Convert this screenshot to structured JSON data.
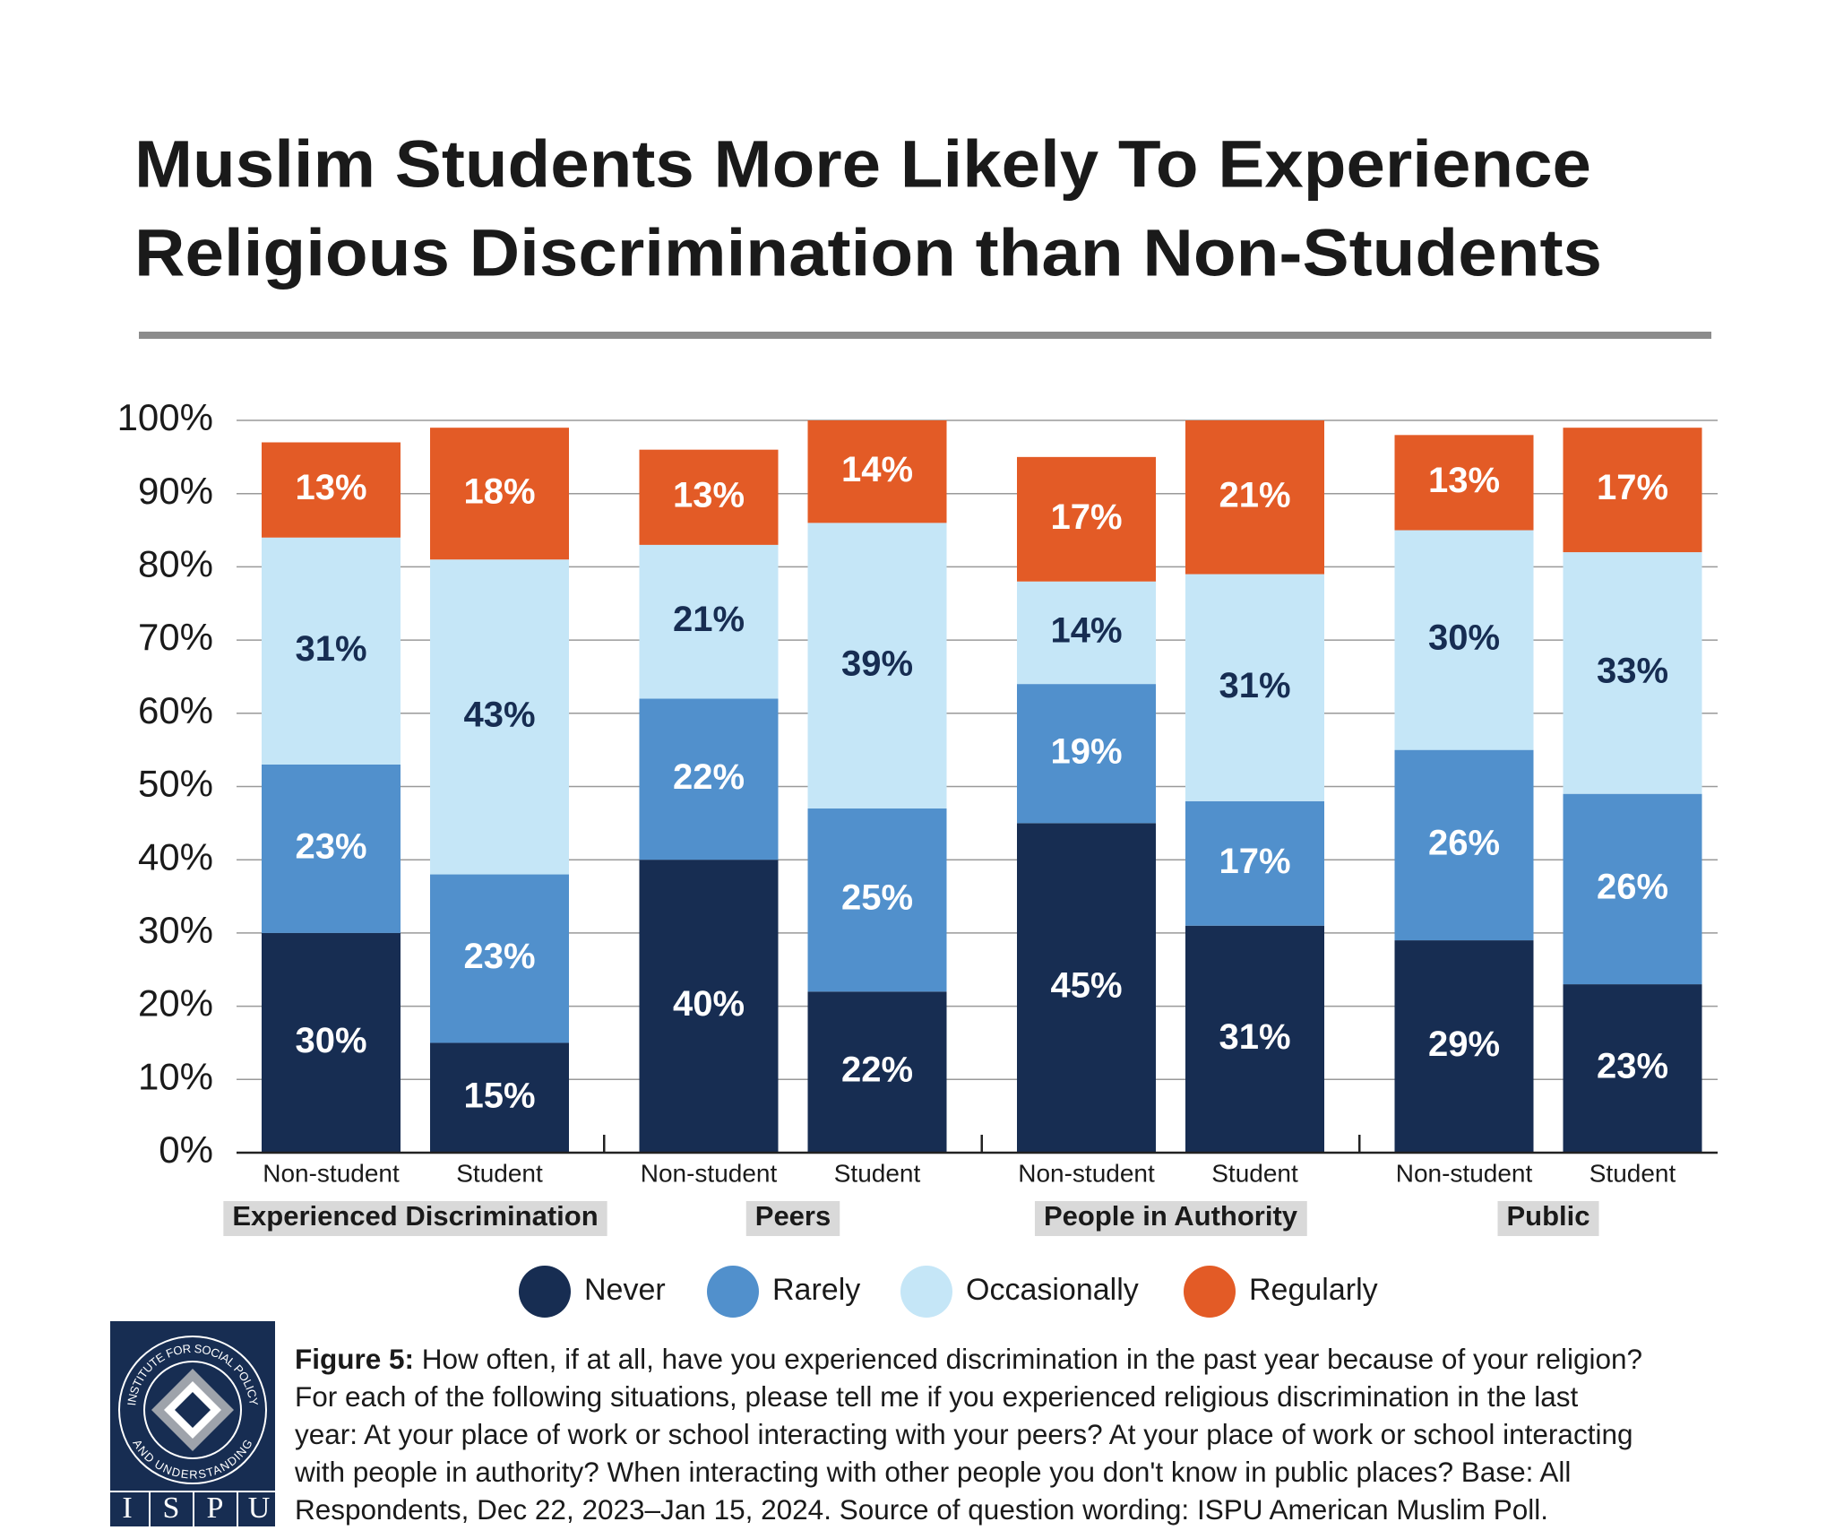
{
  "chart_data": {
    "type": "stacked_bar",
    "title_lines": [
      "Muslim Students More Likely To Experience",
      "Religious Discrimination than Non-Students"
    ],
    "categories": [
      "Non-student",
      "Student",
      "Non-student",
      "Student",
      "Non-student",
      "Student",
      "Non-student",
      "Student"
    ],
    "groups": [
      "Experienced Discrimination",
      "Peers",
      "People in Authority",
      "Public"
    ],
    "series": [
      {
        "name": "Never",
        "color": "#172d52",
        "values": [
          30,
          15,
          40,
          22,
          45,
          31,
          29,
          23
        ],
        "value_labels": [
          "30%",
          "15%",
          "40%",
          "22%",
          "45%",
          "31%",
          "29%",
          "23%"
        ]
      },
      {
        "name": "Rarely",
        "color": "#5190cc",
        "values": [
          23,
          23,
          22,
          25,
          19,
          17,
          26,
          26
        ],
        "value_labels": [
          "23%",
          "23%",
          "22%",
          "25%",
          "19%",
          "17%",
          "26%",
          "26%"
        ]
      },
      {
        "name": "Occasionally",
        "color": "#c5e6f7",
        "values": [
          31,
          43,
          21,
          39,
          14,
          31,
          30,
          33
        ],
        "value_labels": [
          "31%",
          "43%",
          "21%",
          "39%",
          "14%",
          "31%",
          "30%",
          "33%"
        ]
      },
      {
        "name": "Regularly",
        "color": "#e35b26",
        "values": [
          13,
          18,
          13,
          14,
          17,
          21,
          13,
          17
        ],
        "value_labels": [
          "13%",
          "18%",
          "13%",
          "14%",
          "17%",
          "21%",
          "13%",
          "17%"
        ]
      }
    ],
    "ylim": [
      0,
      100
    ],
    "yticks": [
      {
        "value": 0,
        "label": "0%"
      },
      {
        "value": 10,
        "label": "10%"
      },
      {
        "value": 20,
        "label": "20%"
      },
      {
        "value": 30,
        "label": "30%"
      },
      {
        "value": 40,
        "label": "40%"
      },
      {
        "value": 50,
        "label": "50%"
      },
      {
        "value": 60,
        "label": "60%"
      },
      {
        "value": 70,
        "label": "70%"
      },
      {
        "value": 80,
        "label": "80%"
      },
      {
        "value": 90,
        "label": "90%"
      },
      {
        "value": 100,
        "label": "100%"
      }
    ],
    "grid": true
  },
  "caption": {
    "figure_label": "Figure 5:",
    "lines": [
      "How often, if at all, have you experienced discrimination in the past year because of your religion?",
      "For each of the following situations, please tell me if you experienced religious discrimination in the last",
      "year: At your place of work or school interacting with your peers? At your place of work or school interacting",
      "with people in authority? When interacting with other people you don't know in public places? Base: All",
      "Respondents, Dec 22, 2023–Jan 15, 2024. Source of question wording:  ISPU American Muslim Poll."
    ]
  },
  "logo": {
    "ring_top": "INSTITUTE FOR SOCIAL POLICY",
    "ring_bottom": "AND UNDERSTANDING",
    "letters": [
      "I",
      "S",
      "P",
      "U"
    ]
  }
}
